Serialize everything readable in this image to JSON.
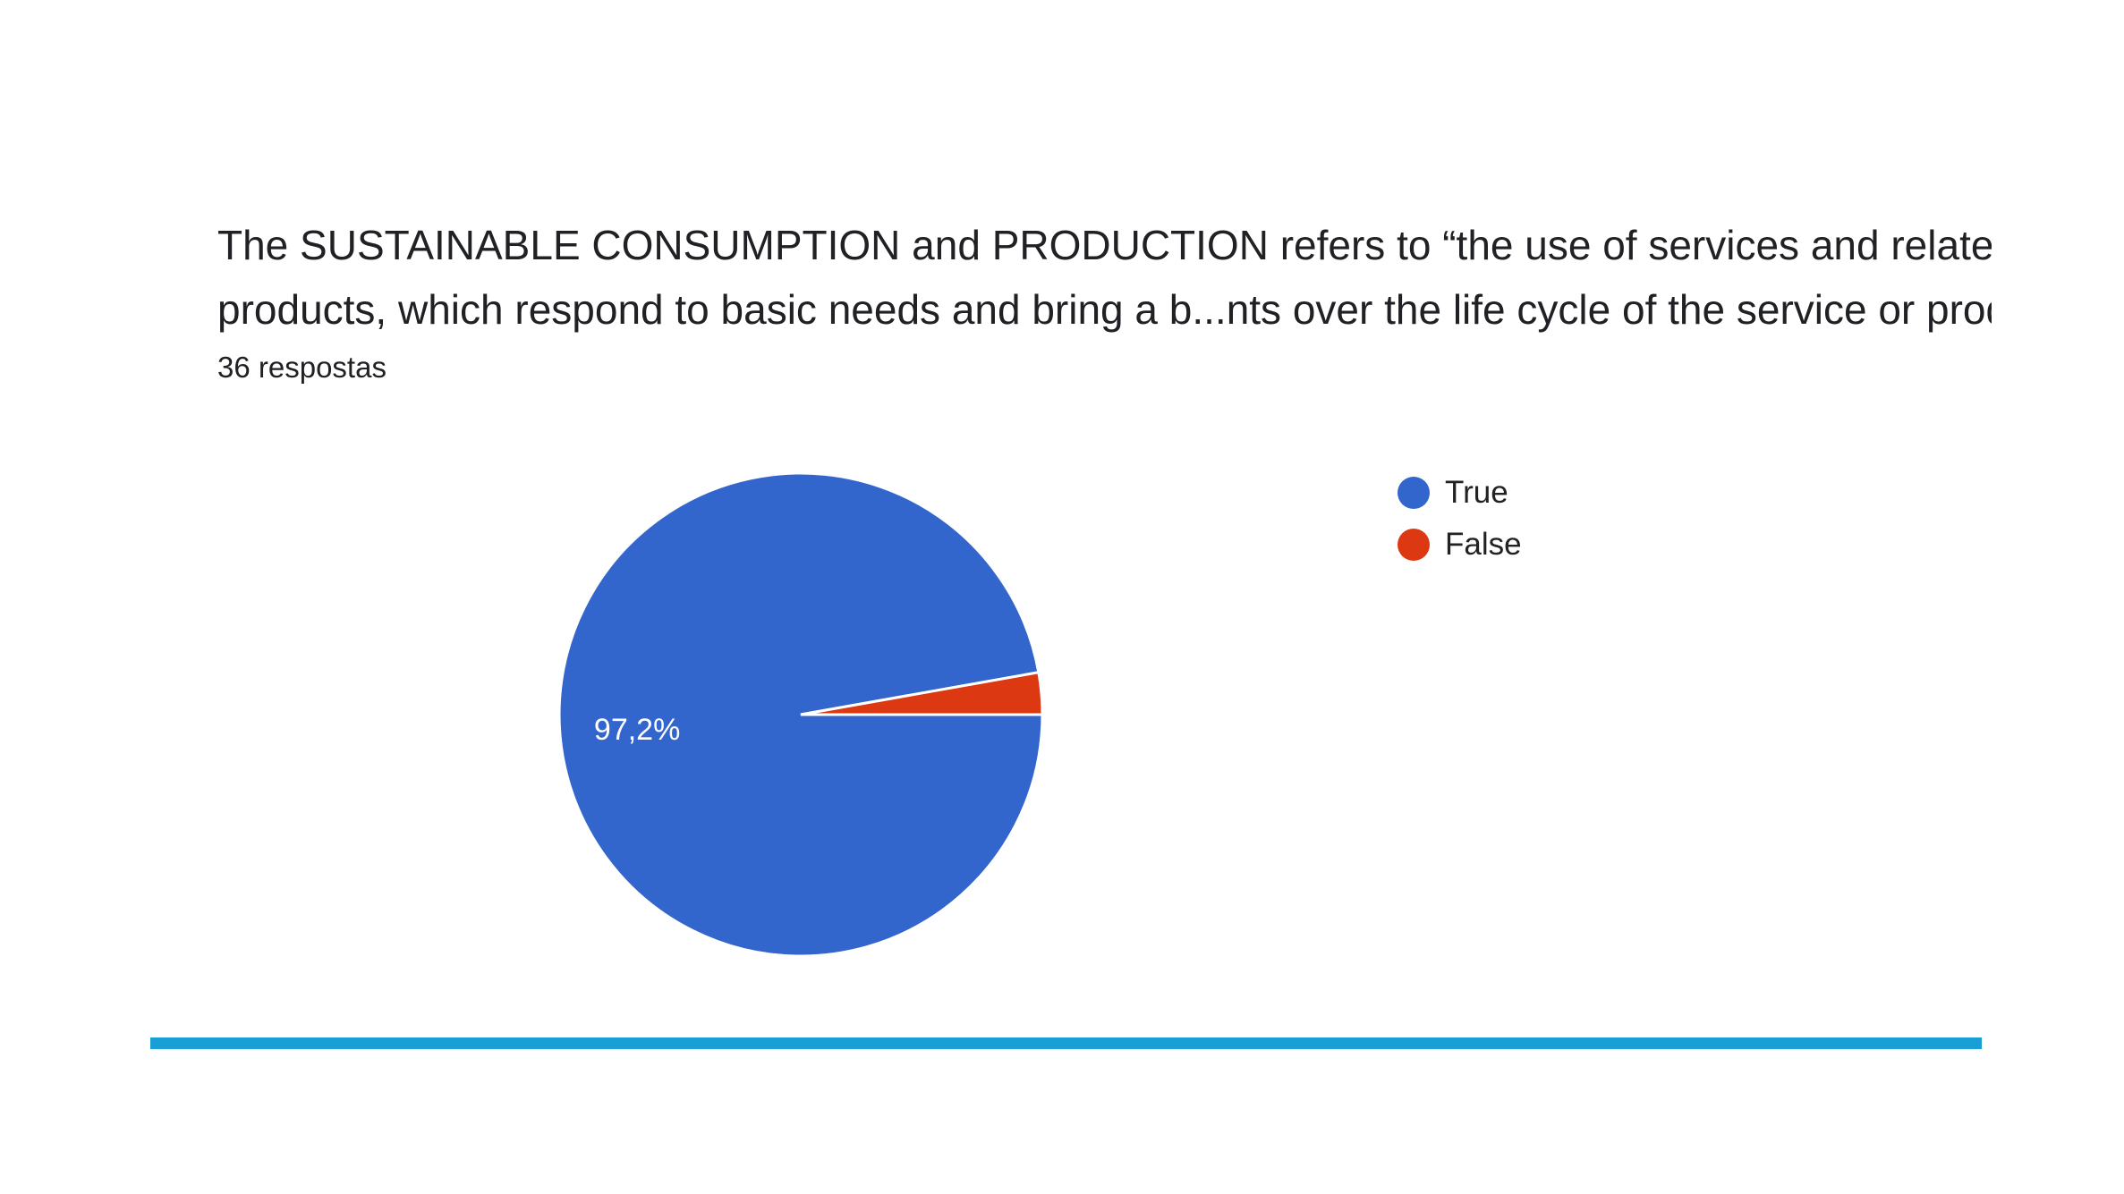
{
  "form_card": {
    "title_line_1": "The SUSTAINABLE CONSUMPTION and PRODUCTION refers to “the use of services and related",
    "title_line_2": "products, which respond to basic needs and bring a b...nts over the life cycle of the service or product",
    "response_count": "36 respostas"
  },
  "chart_data": {
    "type": "pie",
    "title": "",
    "categories": [
      "True",
      "False"
    ],
    "values": [
      97.2,
      2.8
    ],
    "colors": [
      "#3366cc",
      "#dc3912"
    ],
    "data_labels": [
      "97,2%",
      ""
    ],
    "legend": {
      "position": "right",
      "entries": [
        "True",
        "False"
      ]
    }
  },
  "colors": {
    "accent_rule": "#1a9ed6",
    "text": "#202124"
  }
}
